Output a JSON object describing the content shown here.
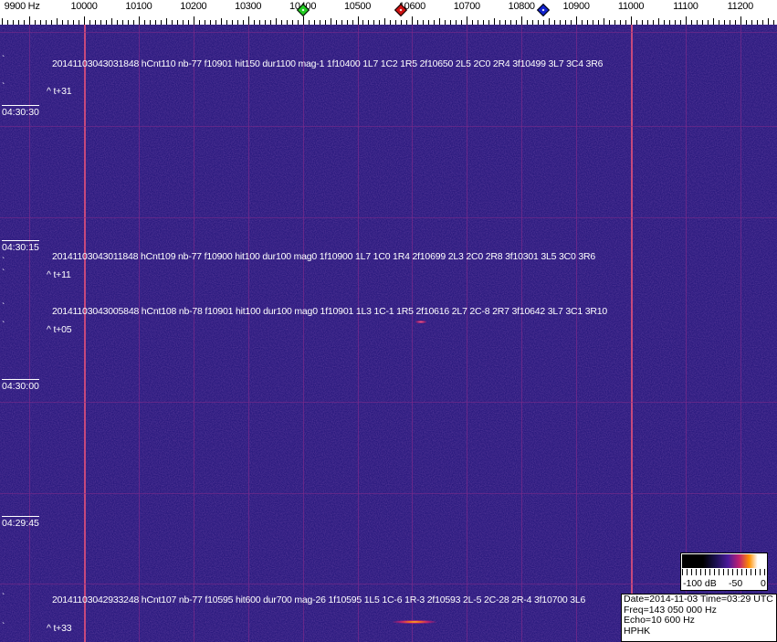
{
  "frequency_scale": {
    "labels": [
      "9900 Hz",
      "10000",
      "10100",
      "10200",
      "10300",
      "10400",
      "10500",
      "10600",
      "10700",
      "10800",
      "10900",
      "11000",
      "11100",
      "11200"
    ],
    "markers": [
      {
        "name": "green-marker",
        "color": "#22cc22",
        "freq_hz": 10400
      },
      {
        "name": "red-marker",
        "color": "#cc1111",
        "freq_hz": 10580
      },
      {
        "name": "blue-marker",
        "color": "#1122cc",
        "freq_hz": 10840
      }
    ]
  },
  "spectrogram": {
    "background_color": "#2b1a80",
    "time_labels": [
      "04:30:30",
      "04:30:15",
      "04:30:00",
      "04:29:45"
    ],
    "detections": [
      {
        "text": "20141103043031848 hCnt110 nb-77 f10901 hit150 dur1100 mag-1 1f10400 1L7 1C2 1R5 2f10650 2L5 2C0 2R4 3f10499 3L7 3C4 3R6",
        "offset": "^ t+31"
      },
      {
        "text": "20141103043011848 hCnt109 nb-77 f10900 hit100 dur100 mag0 1f10900 1L7 1C0 1R4 2f10699 2L3 2C0 2R8 3f10301 3L5 3C0 3R6",
        "offset": "^ t+11"
      },
      {
        "text": "20141103043005848 hCnt108 nb-78 f10901 hit100 dur100 mag0 1f10901 1L3 1C-1 1R5 2f10616 2L7 2C-8 2R7 3f10642 3L7 3C1 3R10",
        "offset": "^ t+05"
      },
      {
        "text": "20141103042933248 hCnt107 nb-77 f10595 hit600 dur700 mag-26 1f10595 1L5 1C-6 1R-3 2f10593 2L-5 2C-28 2R-4 3f10700 3L6",
        "offset": "^ t+33"
      }
    ],
    "tick_glyph": "`"
  },
  "colorbar": {
    "labels": [
      "-100 dB",
      "-50",
      "0"
    ]
  },
  "info": {
    "date_time": "Date=2014-11-03 Time=03:29 UTC",
    "freq": "Freq=143 050 000 Hz",
    "echo": "Echo=10 600 Hz",
    "station": "HPHK"
  }
}
